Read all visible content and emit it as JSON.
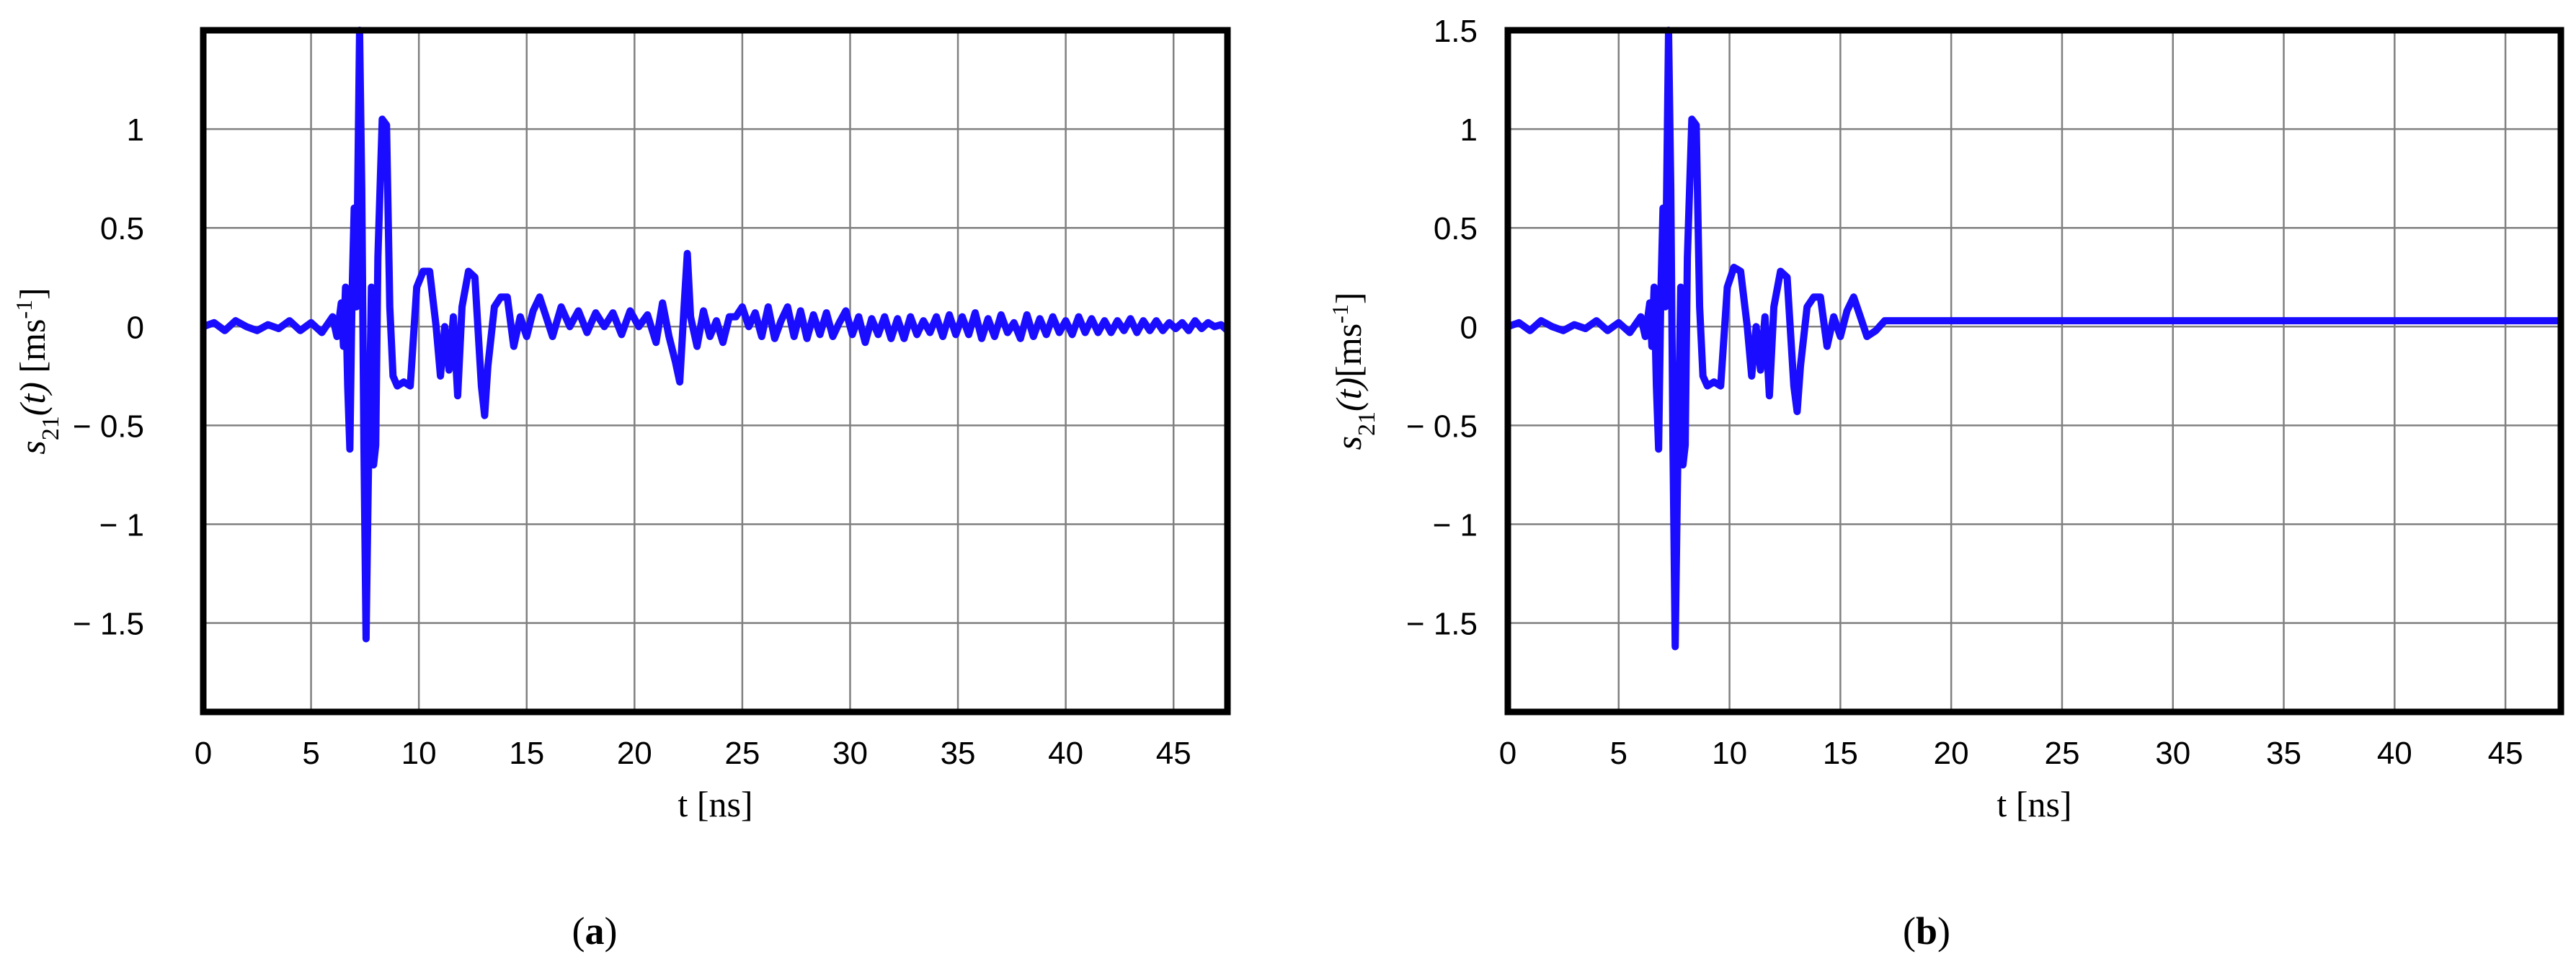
{
  "chart_data": [
    {
      "type": "line",
      "panel_label": "a",
      "xlabel": "t [ns]",
      "ylabel_main": "s",
      "ylabel_sub": "21",
      "ylabel_arg": "(t)",
      "ylabel_unit": " [ms",
      "ylabel_unit_sup": "-1",
      "ylabel_close": "]",
      "xlim": [
        0,
        47.5
      ],
      "ylim": [
        -1.95,
        1.5
      ],
      "x_ticks": [
        0,
        5,
        10,
        15,
        20,
        25,
        30,
        35,
        40,
        45
      ],
      "x_tick_labels": [
        "0",
        "5",
        "10",
        "15",
        "20",
        "25",
        "30",
        "35",
        "40",
        "45"
      ],
      "y_ticks": [
        1,
        0.5,
        0,
        -0.5,
        -1,
        -1.5
      ],
      "y_tick_labels": [
        "1",
        "0.5",
        "0",
        "− 0.5",
        "− 1",
        "− 1.5"
      ],
      "grid": true,
      "color": "#1a0dff",
      "series": [
        {
          "points": [
            [
              0,
              0.0
            ],
            [
              0.5,
              0.02
            ],
            [
              1,
              -0.02
            ],
            [
              1.5,
              0.03
            ],
            [
              2,
              0.0
            ],
            [
              2.5,
              -0.02
            ],
            [
              3,
              0.01
            ],
            [
              3.5,
              -0.01
            ],
            [
              4,
              0.03
            ],
            [
              4.5,
              -0.02
            ],
            [
              5,
              0.02
            ],
            [
              5.5,
              -0.03
            ],
            [
              6,
              0.05
            ],
            [
              6.2,
              -0.05
            ],
            [
              6.4,
              0.12
            ],
            [
              6.5,
              -0.1
            ],
            [
              6.6,
              0.2
            ],
            [
              6.7,
              -0.3
            ],
            [
              6.8,
              -0.62
            ],
            [
              6.9,
              0.15
            ],
            [
              7.0,
              0.6
            ],
            [
              7.1,
              0.1
            ],
            [
              7.25,
              1.5
            ],
            [
              7.35,
              0.7
            ],
            [
              7.45,
              -0.6
            ],
            [
              7.55,
              -1.58
            ],
            [
              7.65,
              -0.8
            ],
            [
              7.8,
              0.2
            ],
            [
              7.9,
              -0.7
            ],
            [
              8.0,
              -0.6
            ],
            [
              8.1,
              0.35
            ],
            [
              8.3,
              1.05
            ],
            [
              8.5,
              1.02
            ],
            [
              8.65,
              0.1
            ],
            [
              8.8,
              -0.25
            ],
            [
              9.0,
              -0.3
            ],
            [
              9.3,
              -0.28
            ],
            [
              9.6,
              -0.3
            ],
            [
              9.9,
              0.2
            ],
            [
              10.2,
              0.28
            ],
            [
              10.5,
              0.28
            ],
            [
              10.8,
              0.0
            ],
            [
              11.0,
              -0.25
            ],
            [
              11.2,
              0.0
            ],
            [
              11.4,
              -0.22
            ],
            [
              11.6,
              0.05
            ],
            [
              11.8,
              -0.35
            ],
            [
              12.0,
              0.1
            ],
            [
              12.3,
              0.28
            ],
            [
              12.6,
              0.25
            ],
            [
              12.9,
              -0.3
            ],
            [
              13.05,
              -0.45
            ],
            [
              13.2,
              -0.2
            ],
            [
              13.5,
              0.1
            ],
            [
              13.8,
              0.15
            ],
            [
              14.1,
              0.15
            ],
            [
              14.4,
              -0.1
            ],
            [
              14.7,
              0.05
            ],
            [
              15.0,
              -0.05
            ],
            [
              15.3,
              0.08
            ],
            [
              15.6,
              0.15
            ],
            [
              15.9,
              0.05
            ],
            [
              16.2,
              -0.05
            ],
            [
              16.6,
              0.1
            ],
            [
              17.0,
              0.0
            ],
            [
              17.4,
              0.08
            ],
            [
              17.8,
              -0.03
            ],
            [
              18.2,
              0.07
            ],
            [
              18.6,
              0.0
            ],
            [
              19.0,
              0.07
            ],
            [
              19.4,
              -0.04
            ],
            [
              19.8,
              0.08
            ],
            [
              20.2,
              0.0
            ],
            [
              20.6,
              0.06
            ],
            [
              21.0,
              -0.08
            ],
            [
              21.3,
              0.12
            ],
            [
              21.6,
              -0.05
            ],
            [
              21.9,
              -0.18
            ],
            [
              22.1,
              -0.28
            ],
            [
              22.3,
              0.1
            ],
            [
              22.45,
              0.37
            ],
            [
              22.6,
              0.05
            ],
            [
              22.9,
              -0.1
            ],
            [
              23.2,
              0.08
            ],
            [
              23.5,
              -0.05
            ],
            [
              23.8,
              0.03
            ],
            [
              24.1,
              -0.08
            ],
            [
              24.4,
              0.05
            ],
            [
              24.7,
              0.05
            ],
            [
              25.0,
              0.1
            ],
            [
              25.3,
              0.0
            ],
            [
              25.6,
              0.07
            ],
            [
              25.9,
              -0.05
            ],
            [
              26.2,
              0.1
            ],
            [
              26.5,
              -0.06
            ],
            [
              26.8,
              0.03
            ],
            [
              27.1,
              0.1
            ],
            [
              27.4,
              -0.05
            ],
            [
              27.7,
              0.08
            ],
            [
              28.0,
              -0.06
            ],
            [
              28.3,
              0.06
            ],
            [
              28.6,
              -0.04
            ],
            [
              28.9,
              0.07
            ],
            [
              29.2,
              -0.05
            ],
            [
              29.5,
              0.02
            ],
            [
              29.8,
              0.08
            ],
            [
              30.1,
              -0.04
            ],
            [
              30.4,
              0.05
            ],
            [
              30.7,
              -0.08
            ],
            [
              31.0,
              0.04
            ],
            [
              31.3,
              -0.04
            ],
            [
              31.6,
              0.05
            ],
            [
              31.9,
              -0.06
            ],
            [
              32.2,
              0.04
            ],
            [
              32.5,
              -0.06
            ],
            [
              32.8,
              0.05
            ],
            [
              33.1,
              -0.04
            ],
            [
              33.4,
              0.03
            ],
            [
              33.7,
              -0.03
            ],
            [
              34.0,
              0.05
            ],
            [
              34.3,
              -0.05
            ],
            [
              34.6,
              0.06
            ],
            [
              34.9,
              -0.04
            ],
            [
              35.2,
              0.05
            ],
            [
              35.5,
              -0.04
            ],
            [
              35.8,
              0.07
            ],
            [
              36.1,
              -0.06
            ],
            [
              36.4,
              0.04
            ],
            [
              36.7,
              -0.05
            ],
            [
              37.0,
              0.06
            ],
            [
              37.3,
              -0.03
            ],
            [
              37.6,
              0.02
            ],
            [
              37.9,
              -0.06
            ],
            [
              38.2,
              0.06
            ],
            [
              38.5,
              -0.05
            ],
            [
              38.8,
              0.04
            ],
            [
              39.1,
              -0.04
            ],
            [
              39.4,
              0.05
            ],
            [
              39.7,
              -0.03
            ],
            [
              40.0,
              0.03
            ],
            [
              40.3,
              -0.04
            ],
            [
              40.6,
              0.05
            ],
            [
              40.9,
              -0.03
            ],
            [
              41.2,
              0.04
            ],
            [
              41.5,
              -0.03
            ],
            [
              41.8,
              0.03
            ],
            [
              42.1,
              -0.03
            ],
            [
              42.4,
              0.03
            ],
            [
              42.7,
              -0.02
            ],
            [
              43.0,
              0.04
            ],
            [
              43.3,
              -0.03
            ],
            [
              43.6,
              0.03
            ],
            [
              43.9,
              -0.02
            ],
            [
              44.2,
              0.03
            ],
            [
              44.5,
              -0.02
            ],
            [
              44.8,
              0.02
            ],
            [
              45.1,
              -0.01
            ],
            [
              45.4,
              0.02
            ],
            [
              45.7,
              -0.02
            ],
            [
              46.0,
              0.03
            ],
            [
              46.3,
              -0.01
            ],
            [
              46.6,
              0.02
            ],
            [
              46.9,
              0.0
            ],
            [
              47.2,
              0.01
            ],
            [
              47.5,
              -0.02
            ]
          ]
        }
      ]
    },
    {
      "type": "line",
      "panel_label": "b",
      "xlabel": "t [ns]",
      "ylabel_main": "s",
      "ylabel_sub": "21",
      "ylabel_arg": "(t)",
      "ylabel_unit": "[ms",
      "ylabel_unit_sup": "-1",
      "ylabel_close": "]",
      "xlim": [
        0,
        47.5
      ],
      "ylim": [
        -1.95,
        1.5
      ],
      "x_ticks": [
        0,
        5,
        10,
        15,
        20,
        25,
        30,
        35,
        40,
        45
      ],
      "x_tick_labels": [
        "0",
        "5",
        "10",
        "15",
        "20",
        "25",
        "30",
        "35",
        "40",
        "45"
      ],
      "y_ticks": [
        1.5,
        1,
        0.5,
        0,
        -0.5,
        -1,
        -1.5
      ],
      "y_tick_labels": [
        "1.5",
        "1",
        "0.5",
        "0",
        "− 0.5",
        "− 1",
        "− 1.5"
      ],
      "grid": true,
      "color": "#1a0dff",
      "series": [
        {
          "points": [
            [
              0,
              0.0
            ],
            [
              0.5,
              0.02
            ],
            [
              1,
              -0.02
            ],
            [
              1.5,
              0.03
            ],
            [
              2,
              0.0
            ],
            [
              2.5,
              -0.02
            ],
            [
              3,
              0.01
            ],
            [
              3.5,
              -0.01
            ],
            [
              4,
              0.03
            ],
            [
              4.5,
              -0.02
            ],
            [
              5,
              0.02
            ],
            [
              5.5,
              -0.03
            ],
            [
              6,
              0.05
            ],
            [
              6.2,
              -0.05
            ],
            [
              6.4,
              0.12
            ],
            [
              6.5,
              -0.1
            ],
            [
              6.6,
              0.2
            ],
            [
              6.7,
              -0.3
            ],
            [
              6.8,
              -0.62
            ],
            [
              6.9,
              0.15
            ],
            [
              7.0,
              0.6
            ],
            [
              7.1,
              0.1
            ],
            [
              7.25,
              1.5
            ],
            [
              7.35,
              0.7
            ],
            [
              7.45,
              -0.6
            ],
            [
              7.55,
              -1.62
            ],
            [
              7.65,
              -0.8
            ],
            [
              7.8,
              0.2
            ],
            [
              7.9,
              -0.7
            ],
            [
              8.0,
              -0.6
            ],
            [
              8.1,
              0.35
            ],
            [
              8.3,
              1.05
            ],
            [
              8.5,
              1.02
            ],
            [
              8.65,
              0.1
            ],
            [
              8.8,
              -0.25
            ],
            [
              9.0,
              -0.3
            ],
            [
              9.3,
              -0.28
            ],
            [
              9.6,
              -0.3
            ],
            [
              9.9,
              0.2
            ],
            [
              10.2,
              0.3
            ],
            [
              10.5,
              0.28
            ],
            [
              10.8,
              0.0
            ],
            [
              11.0,
              -0.25
            ],
            [
              11.2,
              0.0
            ],
            [
              11.4,
              -0.22
            ],
            [
              11.6,
              0.05
            ],
            [
              11.8,
              -0.35
            ],
            [
              12.0,
              0.1
            ],
            [
              12.3,
              0.28
            ],
            [
              12.6,
              0.25
            ],
            [
              12.9,
              -0.3
            ],
            [
              13.05,
              -0.43
            ],
            [
              13.2,
              -0.2
            ],
            [
              13.5,
              0.1
            ],
            [
              13.8,
              0.15
            ],
            [
              14.1,
              0.15
            ],
            [
              14.4,
              -0.1
            ],
            [
              14.7,
              0.05
            ],
            [
              15.0,
              -0.05
            ],
            [
              15.3,
              0.08
            ],
            [
              15.6,
              0.15
            ],
            [
              15.9,
              0.05
            ],
            [
              16.2,
              -0.05
            ],
            [
              16.6,
              -0.02
            ],
            [
              17.0,
              0.03
            ],
            [
              20,
              0.03
            ],
            [
              25,
              0.03
            ],
            [
              30,
              0.03
            ],
            [
              35,
              0.03
            ],
            [
              40,
              0.03
            ],
            [
              45,
              0.03
            ],
            [
              47.5,
              0.03
            ]
          ]
        }
      ]
    }
  ]
}
